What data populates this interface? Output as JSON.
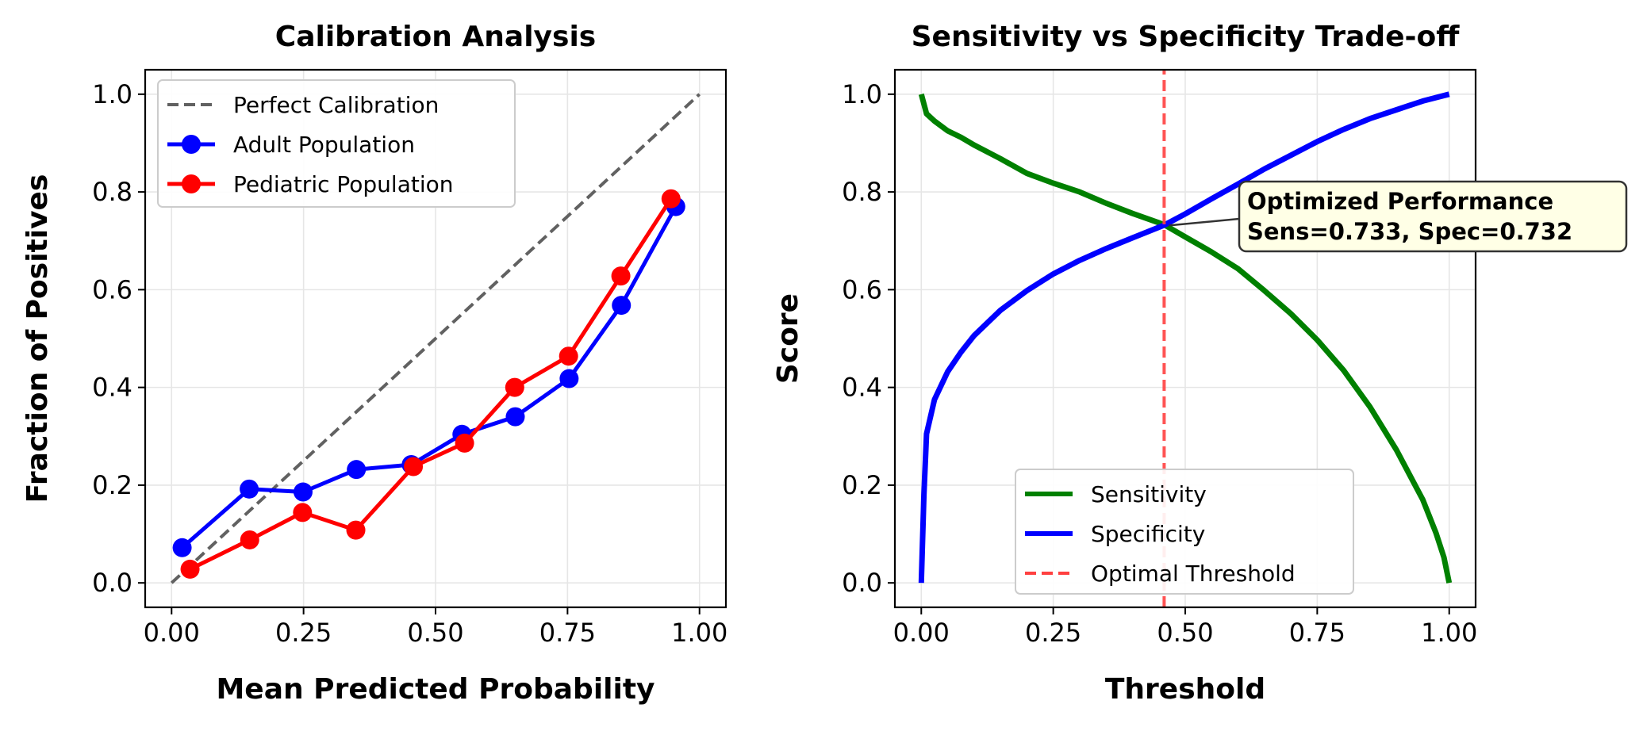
{
  "chart_data": [
    {
      "type": "line",
      "title": "Calibration Analysis",
      "xlabel": "Mean Predicted Probability",
      "ylabel": "Fraction of Positives",
      "xlim": [
        -0.05,
        1.05
      ],
      "ylim": [
        -0.05,
        1.05
      ],
      "xticks": [
        "0.00",
        "0.25",
        "0.50",
        "0.75",
        "1.00"
      ],
      "yticks": [
        "0.0",
        "0.2",
        "0.4",
        "0.6",
        "0.8",
        "1.0"
      ],
      "grid": true,
      "legend_position": "upper-left",
      "series": [
        {
          "name": "Perfect Calibration",
          "color": "#616161",
          "style": "dashed",
          "x": [
            0,
            1
          ],
          "y": [
            0,
            1
          ]
        },
        {
          "name": "Adult Population",
          "color": "#0000ff",
          "style": "solid-markers",
          "x": [
            0.02,
            0.147,
            0.249,
            0.35,
            0.454,
            0.55,
            0.651,
            0.753,
            0.852,
            0.955
          ],
          "y": [
            0.072,
            0.192,
            0.186,
            0.232,
            0.242,
            0.304,
            0.34,
            0.418,
            0.568,
            0.77
          ]
        },
        {
          "name": "Pediatric Population",
          "color": "#ff0000",
          "style": "solid-markers",
          "x": [
            0.035,
            0.148,
            0.248,
            0.349,
            0.458,
            0.555,
            0.65,
            0.752,
            0.851,
            0.946
          ],
          "y": [
            0.028,
            0.088,
            0.144,
            0.108,
            0.238,
            0.286,
            0.4,
            0.464,
            0.628,
            0.786
          ]
        }
      ]
    },
    {
      "type": "line",
      "title": "Sensitivity vs Specificity Trade-off",
      "xlabel": "Threshold",
      "ylabel": "Score",
      "xlim": [
        -0.05,
        1.05
      ],
      "ylim": [
        -0.05,
        1.05
      ],
      "xticks": [
        "0.00",
        "0.25",
        "0.50",
        "0.75",
        "1.00"
      ],
      "yticks": [
        "0.0",
        "0.2",
        "0.4",
        "0.6",
        "0.8",
        "1.0"
      ],
      "grid": true,
      "legend_position": "lower-center",
      "series": [
        {
          "name": "Sensitivity",
          "color": "#008000",
          "style": "solid",
          "x": [
            0,
            0.01,
            0.025,
            0.05,
            0.075,
            0.1,
            0.15,
            0.2,
            0.25,
            0.3,
            0.35,
            0.4,
            0.45,
            0.46,
            0.5,
            0.55,
            0.6,
            0.65,
            0.7,
            0.75,
            0.8,
            0.85,
            0.9,
            0.95,
            0.975,
            0.99,
            1.0
          ],
          "y": [
            1.0,
            0.96,
            0.945,
            0.925,
            0.912,
            0.896,
            0.868,
            0.838,
            0.818,
            0.8,
            0.777,
            0.756,
            0.737,
            0.733,
            0.708,
            0.677,
            0.643,
            0.598,
            0.551,
            0.497,
            0.435,
            0.36,
            0.272,
            0.17,
            0.102,
            0.052,
            0.0
          ]
        },
        {
          "name": "Specificity",
          "color": "#0000ff",
          "style": "solid",
          "x": [
            0,
            0.005,
            0.01,
            0.025,
            0.05,
            0.075,
            0.1,
            0.15,
            0.2,
            0.25,
            0.3,
            0.35,
            0.4,
            0.46,
            0.5,
            0.55,
            0.6,
            0.65,
            0.7,
            0.75,
            0.8,
            0.85,
            0.9,
            0.95,
            1.0
          ],
          "y": [
            0.0,
            0.18,
            0.305,
            0.375,
            0.432,
            0.472,
            0.506,
            0.558,
            0.598,
            0.632,
            0.66,
            0.684,
            0.706,
            0.732,
            0.755,
            0.786,
            0.816,
            0.847,
            0.875,
            0.903,
            0.928,
            0.95,
            0.968,
            0.986,
            1.0
          ]
        },
        {
          "name": "Optimal Threshold",
          "color": "#ff4040",
          "style": "vline-dashed",
          "x": [
            0.46,
            0.46
          ],
          "y": [
            -0.05,
            1.05
          ]
        }
      ],
      "annotation": {
        "lines": [
          "Optimized Performance",
          "Sens=0.733, Spec=0.732"
        ],
        "x": 0.46,
        "y": 0.733,
        "box_fill": "#ffffe6"
      }
    }
  ]
}
